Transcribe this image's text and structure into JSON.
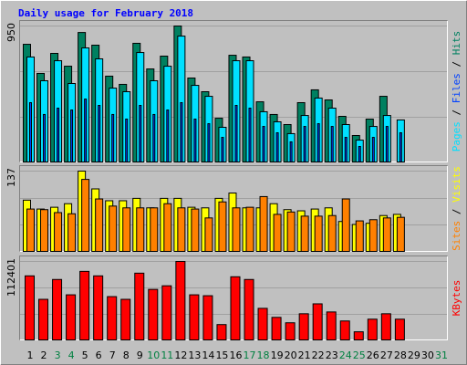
{
  "chart_data": {
    "type": "bar",
    "title": "Daily usage for February 2018",
    "categories": [
      "1",
      "2",
      "3",
      "4",
      "5",
      "6",
      "7",
      "8",
      "9",
      "10",
      "11",
      "12",
      "13",
      "14",
      "15",
      "16",
      "17",
      "18",
      "19",
      "20",
      "21",
      "22",
      "23",
      "24",
      "25",
      "26",
      "27",
      "28",
      "29",
      "30",
      "31"
    ],
    "weekend_days": [
      3,
      4,
      10,
      11,
      17,
      18,
      24,
      25,
      31
    ],
    "weekday_color": "#000000",
    "weekend_color": "#008040",
    "legend_separator": " / ",
    "panels": [
      {
        "ylim": [
          0,
          950
        ],
        "yticks": [
          950
        ],
        "series": [
          {
            "name": "Pages",
            "color": "#00e0ff",
            "values": [
              735,
              570,
              709,
              551,
              798,
              722,
              519,
              494,
              766,
              570,
              671,
              880,
              538,
              462,
              247,
              709,
              709,
              355,
              285,
              203,
              329,
              450,
              380,
              266,
              158,
              253,
              329,
              298,
              null,
              null,
              null
            ]
          },
          {
            "name": "Files",
            "color": "#0040ff",
            "values": [
              418,
              336,
              380,
              367,
              443,
              399,
              336,
              304,
              399,
              336,
              367,
              418,
              304,
              272,
              177,
              399,
              380,
              253,
              209,
              146,
              253,
              272,
              253,
              177,
              114,
              177,
              253,
              209,
              null,
              null,
              null
            ]
          },
          {
            "name": "Hits",
            "color": "#008060",
            "values": [
              823,
              621,
              760,
              671,
              905,
              817,
              602,
              545,
              830,
              652,
              741,
              950,
              589,
              494,
              310,
              747,
              735,
              424,
              336,
              266,
              418,
              507,
              437,
              323,
              190,
              304,
              462,
              null,
              null,
              null,
              null
            ]
          }
        ]
      },
      {
        "ylim": [
          0,
          137
        ],
        "yticks": [
          137
        ],
        "series": [
          {
            "name": "Sites",
            "color": "#ff8000",
            "values": [
              73,
              72,
              67,
              65,
              123,
              90,
              78,
              75,
              75,
              75,
              82,
              75,
              73,
              58,
              85,
              75,
              76,
              94,
              64,
              68,
              61,
              61,
              62,
              90,
              53,
              55,
              58,
              59,
              null,
              null,
              null
            ]
          },
          {
            "name": "Visits",
            "color": "#ffff00",
            "values": [
              88,
              73,
              76,
              82,
              137,
              107,
              87,
              87,
              91,
              75,
              91,
              91,
              76,
              75,
              91,
              100,
              75,
              75,
              82,
              72,
              70,
              73,
              75,
              52,
              47,
              49,
              62,
              64,
              null,
              null,
              null
            ]
          }
        ]
      },
      {
        "ylim": [
          0,
          112401
        ],
        "yticks": [
          112401
        ],
        "series": [
          {
            "name": "KBytes",
            "color": "#ff0000",
            "values": [
              91965,
              58755,
              86856,
              65142,
              98352,
              91965,
              62587,
              58755,
              95797,
              72805,
              77914,
              112401,
              65142,
              63864,
              22991,
              90688,
              86856,
              45982,
              33210,
              25546,
              38319,
              52369,
              40873,
              28100,
              12773,
              30655,
              38319,
              30655,
              null,
              null,
              null
            ]
          }
        ]
      }
    ]
  }
}
